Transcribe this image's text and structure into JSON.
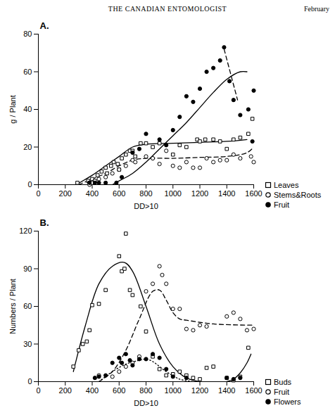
{
  "header": {
    "title": "THE CANADIAN ENTOMOLOGIST",
    "date": "February"
  },
  "chart_data": [
    {
      "type": "scatter",
      "panel": "A.",
      "x_label": "DD>10",
      "y_label": "g / Plant",
      "xlim": [
        0,
        1600
      ],
      "xticks": [
        0,
        200,
        400,
        600,
        800,
        1000,
        1200,
        1400,
        1600
      ],
      "ylim": [
        0,
        80
      ],
      "yticks": [
        0,
        20,
        40,
        60,
        80
      ],
      "grid": false,
      "legend": "right",
      "series": [
        {
          "name": "Leaves",
          "color": "#000000",
          "marker": "square_open",
          "x": [
            290,
            370,
            380,
            400,
            420,
            440,
            470,
            500,
            510,
            540,
            560,
            590,
            600,
            620,
            650,
            680,
            700,
            720,
            760,
            800,
            850,
            900,
            1000,
            1050,
            1100,
            1180,
            1200,
            1240,
            1300,
            1350,
            1400,
            1450,
            1500,
            1560,
            1590
          ],
          "values": [
            1,
            2,
            1,
            3,
            2,
            5,
            7,
            9,
            6,
            10,
            12,
            11,
            8,
            14,
            16,
            18,
            18,
            15,
            22,
            22,
            20,
            22,
            16,
            21,
            20,
            24,
            23,
            24,
            24,
            23,
            19,
            24,
            25,
            27,
            35
          ],
          "fits": [
            {
              "line_style": "solid",
              "x": [
                280,
                400,
                500,
                600,
                700,
                800,
                1000,
                1200,
                1400,
                1550
              ],
              "values": [
                0,
                5,
                10,
                15,
                20,
                21.5,
                22,
                22.5,
                23,
                24
              ]
            }
          ]
        },
        {
          "name": "Stems&Roots",
          "color": "#000000",
          "marker": "circle_open",
          "x": [
            380,
            400,
            450,
            500,
            550,
            600,
            650,
            700,
            720,
            800,
            850,
            900,
            950,
            1000,
            1050,
            1100,
            1150,
            1200,
            1250,
            1300,
            1350,
            1400,
            1450,
            1500,
            1580,
            1600
          ],
          "values": [
            0,
            1,
            3,
            4,
            6,
            8,
            10,
            13,
            12,
            15,
            14,
            11,
            18,
            10,
            9,
            12,
            9,
            9,
            14,
            12,
            13,
            13,
            16,
            14,
            15,
            12
          ],
          "fits": [
            {
              "line_style": "dashed",
              "x": [
                300,
                400,
                500,
                600,
                700,
                800,
                1000,
                1200,
                1400,
                1550,
                1600
              ],
              "values": [
                0,
                3,
                6,
                10,
                13,
                14,
                14,
                14.5,
                15,
                17,
                20
              ]
            }
          ]
        },
        {
          "name": "Fruit",
          "color": "#000000",
          "marker": "circle_filled",
          "x": [
            380,
            420,
            450,
            500,
            580,
            620,
            700,
            750,
            800,
            900,
            950,
            1000,
            1050,
            1100,
            1150,
            1200,
            1250,
            1300,
            1350,
            1380,
            1420,
            1450,
            1500,
            1560,
            1590,
            1600
          ],
          "values": [
            1,
            1,
            1,
            1,
            1,
            4,
            17,
            19,
            27,
            24,
            21,
            29,
            36,
            47,
            44,
            51,
            60,
            62,
            66,
            73,
            55,
            45,
            37,
            40,
            23,
            50
          ],
          "fits": [
            {
              "line_style": "solid",
              "x": [
                550,
                600,
                700,
                800,
                900,
                1000,
                1100,
                1200,
                1300,
                1400,
                1500,
                1550
              ],
              "values": [
                0,
                2,
                6,
                12,
                19,
                26,
                33,
                41,
                49,
                56,
                60,
                60
              ]
            },
            {
              "line_style": "dashed",
              "x": [
                1380,
                1480
              ],
              "values": [
                72,
                45
              ]
            }
          ]
        }
      ]
    },
    {
      "type": "scatter",
      "panel": "B.",
      "x_label": "DD>10",
      "y_label": "Numbers / Plant",
      "xlim": [
        0,
        1600
      ],
      "xticks": [
        0,
        200,
        400,
        600,
        800,
        1000,
        1200,
        1400,
        1600
      ],
      "ylim": [
        0,
        120
      ],
      "yticks": [
        0,
        30,
        60,
        90,
        120
      ],
      "grid": false,
      "legend": "right",
      "series": [
        {
          "name": "Buds",
          "color": "#000000",
          "marker": "square_open",
          "x": [
            260,
            300,
            330,
            360,
            380,
            400,
            450,
            500,
            600,
            620,
            640,
            650,
            680,
            700,
            760,
            800,
            850,
            900,
            950,
            1000,
            1050,
            1100,
            1150,
            1200,
            1250,
            1300,
            1400,
            1450,
            1500,
            1560
          ],
          "values": [
            12,
            25,
            30,
            32,
            41,
            61,
            62,
            73,
            100,
            88,
            90,
            118,
            73,
            69,
            60,
            40,
            20,
            10,
            5,
            6,
            8,
            5,
            3,
            2,
            11,
            12,
            3,
            1,
            4,
            27
          ],
          "fits": [
            {
              "line_style": "solid",
              "x": [
                260,
                350,
                450,
                550,
                640,
                700,
                800,
                900,
                1000,
                1100,
                1200
              ],
              "values": [
                8,
                45,
                78,
                92,
                95,
                88,
                60,
                30,
                12,
                3,
                0
              ]
            },
            {
              "line_style": "solid",
              "x": [
                1400,
                1450,
                1500,
                1550,
                1580
              ],
              "values": [
                0,
                2,
                7,
                15,
                22
              ]
            }
          ]
        },
        {
          "name": "Fruit",
          "color": "#000000",
          "marker": "circle_open",
          "x": [
            450,
            550,
            600,
            650,
            700,
            750,
            800,
            850,
            900,
            920,
            950,
            1000,
            1050,
            1100,
            1150,
            1200,
            1250,
            1400,
            1450,
            1500,
            1550,
            1600
          ],
          "values": [
            5,
            4,
            8,
            12,
            15,
            20,
            72,
            78,
            92,
            85,
            78,
            58,
            58,
            42,
            41,
            45,
            44,
            52,
            55,
            50,
            41,
            42
          ],
          "fits": [
            {
              "line_style": "dashed",
              "x": [
                450,
                550,
                650,
                750,
                850,
                900,
                950,
                1000,
                1050,
                1100,
                1300,
                1600
              ],
              "values": [
                0,
                8,
                25,
                50,
                72,
                73,
                65,
                55,
                50,
                49,
                46,
                45
              ]
            }
          ]
        },
        {
          "name": "Flowers",
          "color": "#000000",
          "marker": "circle_filled",
          "x": [
            420,
            450,
            500,
            550,
            600,
            620,
            650,
            680,
            700,
            750,
            800,
            850,
            900,
            950,
            1000,
            1100,
            1400,
            1450,
            1500
          ],
          "values": [
            3,
            4,
            5,
            15,
            19,
            15,
            22,
            17,
            13,
            18,
            18,
            22,
            19,
            10,
            4,
            3,
            3,
            2,
            3
          ],
          "fits": [
            {
              "line_style": "dotted",
              "x": [
                450,
                550,
                650,
                750,
                800,
                850,
                950,
                1050,
                1150
              ],
              "values": [
                0,
                8,
                14,
                17,
                18,
                16,
                8,
                2,
                0
              ]
            }
          ]
        }
      ]
    }
  ]
}
